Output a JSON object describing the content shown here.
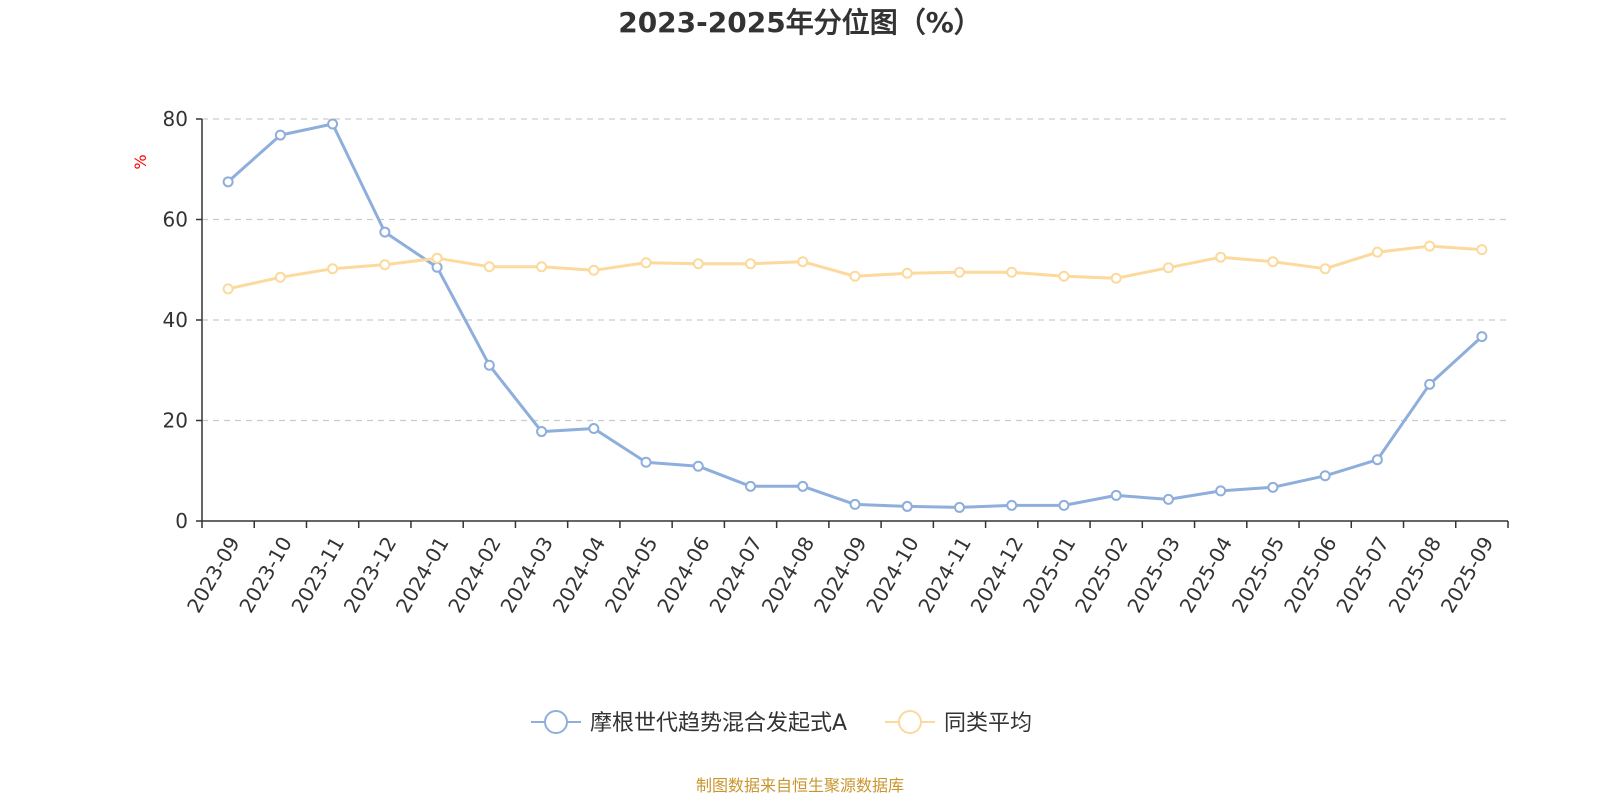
{
  "chart_data": {
    "type": "line",
    "title": "2023-2025年分位图（%）",
    "y_unit": "%",
    "ylim": [
      0,
      80
    ],
    "y_ticks": [
      0,
      20,
      40,
      60,
      80
    ],
    "grid": true,
    "legend_position": "bottom",
    "categories": [
      "2023-09",
      "2023-10",
      "2023-11",
      "2023-12",
      "2024-01",
      "2024-02",
      "2024-03",
      "2024-04",
      "2024-05",
      "2024-06",
      "2024-07",
      "2024-08",
      "2024-09",
      "2024-10",
      "2024-11",
      "2024-12",
      "2025-01",
      "2025-02",
      "2025-03",
      "2025-04",
      "2025-05",
      "2025-06",
      "2025-07",
      "2025-08",
      "2025-09"
    ],
    "series": [
      {
        "name": "摩根世代趋势混合发起式A",
        "color": "#8eaedb",
        "values": [
          67.5,
          76.8,
          79.0,
          57.5,
          50.5,
          31.0,
          17.8,
          18.4,
          11.7,
          10.9,
          6.9,
          6.9,
          3.3,
          2.9,
          2.7,
          3.1,
          3.1,
          5.1,
          4.3,
          6.0,
          6.7,
          9.0,
          12.2,
          27.2,
          36.7
        ]
      },
      {
        "name": "同类平均",
        "color": "#fcd99c",
        "values": [
          46.2,
          48.5,
          50.2,
          51.0,
          52.3,
          50.6,
          50.6,
          49.9,
          51.4,
          51.2,
          51.2,
          51.6,
          48.7,
          49.3,
          49.5,
          49.5,
          48.7,
          48.3,
          50.4,
          52.5,
          51.6,
          50.2,
          53.5,
          54.7,
          54.0
        ]
      }
    ]
  },
  "footer": {
    "source": "制图数据来自恒生聚源数据库"
  }
}
